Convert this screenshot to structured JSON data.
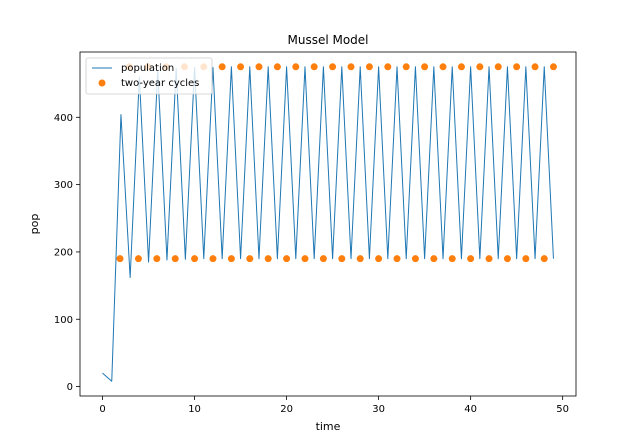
{
  "colors": {
    "population": "#1f77b4",
    "cycles": "#ff7f0e"
  },
  "chart_data": {
    "type": "line",
    "title": "Mussel Model",
    "xlabel": "time",
    "ylabel": "pop",
    "xlim": [
      -2.45,
      51.45
    ],
    "ylim": [
      -14,
      497
    ],
    "x_ticks": [
      0,
      10,
      20,
      30,
      40,
      50
    ],
    "y_ticks": [
      0,
      100,
      200,
      300,
      400
    ],
    "legend": {
      "placement": "upper left",
      "entries": [
        "population",
        "two-year cycles"
      ]
    },
    "series": [
      {
        "name": "population",
        "kind": "line",
        "x": [
          0,
          1,
          2,
          3,
          4,
          5,
          6,
          7,
          8,
          9,
          10,
          11,
          12,
          13,
          14,
          15,
          16,
          17,
          18,
          19,
          20,
          21,
          22,
          23,
          24,
          25,
          26,
          27,
          28,
          29,
          30,
          31,
          32,
          33,
          34,
          35,
          36,
          37,
          38,
          39,
          40,
          41,
          42,
          43,
          44,
          45,
          46,
          47,
          48,
          49
        ],
        "y": [
          20,
          8,
          404,
          162,
          460,
          185,
          470,
          188,
          473,
          189,
          474,
          190,
          474,
          190,
          475,
          190,
          475,
          190,
          475,
          190,
          475,
          190,
          475,
          190,
          475,
          190,
          475,
          190,
          475,
          190,
          475,
          190,
          475,
          190,
          475,
          190,
          475,
          190,
          475,
          190,
          475,
          190,
          475,
          190,
          475,
          190,
          475,
          190,
          475,
          190
        ]
      },
      {
        "name": "two-year cycles",
        "kind": "scatter",
        "x": [
          1.9,
          3.9,
          5.9,
          7.9,
          10.0,
          12.0,
          14.0,
          16.0,
          18.0,
          20.0,
          22.0,
          24.0,
          26.0,
          28.0,
          30.0,
          32.0,
          34.0,
          36.0,
          38.0,
          40.0,
          42.0,
          44.0,
          46.0,
          48.0,
          2.9,
          4.9,
          6.9,
          8.9,
          11.0,
          13.0,
          15.0,
          17.0,
          19.0,
          21.0,
          23.0,
          25.0,
          27.0,
          29.0,
          31.0,
          33.0,
          35.0,
          37.0,
          39.0,
          41.0,
          43.0,
          45.0,
          47.0,
          49.0
        ],
        "y": [
          190,
          190,
          190,
          190,
          190,
          190,
          190,
          190,
          190,
          190,
          190,
          190,
          190,
          190,
          190,
          190,
          190,
          190,
          190,
          190,
          190,
          190,
          190,
          190,
          475,
          475,
          475,
          475,
          475,
          475,
          475,
          475,
          475,
          475,
          475,
          475,
          475,
          475,
          475,
          475,
          475,
          475,
          475,
          475,
          475,
          475,
          475,
          475
        ]
      }
    ]
  }
}
